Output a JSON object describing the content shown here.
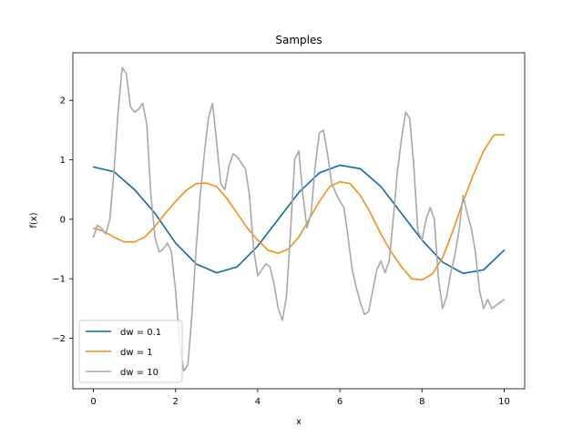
{
  "chart_data": {
    "type": "line",
    "title": "Samples",
    "xlabel": "x",
    "ylabel": "f(x)",
    "xlim": [
      -0.5,
      10.5
    ],
    "ylim": [
      -2.85,
      2.8
    ],
    "xticks": [
      0,
      2,
      4,
      6,
      8,
      10
    ],
    "yticks": [
      -2,
      -1,
      0,
      1,
      2
    ],
    "grid": false,
    "legend_position": "bottom-left",
    "series": [
      {
        "name": "dw = 0.1",
        "color": "#0f6aa3",
        "x": [
          0,
          0.5,
          1,
          1.5,
          2,
          2.5,
          3,
          3.5,
          4,
          4.5,
          5,
          5.5,
          6,
          6.5,
          7,
          7.5,
          8,
          8.5,
          9,
          9.5,
          10
        ],
        "y": [
          0.88,
          0.8,
          0.5,
          0.1,
          -0.4,
          -0.75,
          -0.9,
          -0.8,
          -0.45,
          0.0,
          0.45,
          0.78,
          0.91,
          0.85,
          0.55,
          0.1,
          -0.35,
          -0.72,
          -0.91,
          -0.85,
          -0.52
        ]
      },
      {
        "name": "dw = 1",
        "color": "#f28e1c",
        "x": [
          0,
          0.25,
          0.5,
          0.75,
          1,
          1.25,
          1.5,
          1.75,
          2,
          2.25,
          2.5,
          2.75,
          3,
          3.25,
          3.5,
          3.75,
          4,
          4.25,
          4.5,
          4.75,
          5,
          5.25,
          5.5,
          5.75,
          6,
          6.25,
          6.5,
          6.75,
          7,
          7.25,
          7.5,
          7.75,
          8,
          8.25,
          8.5,
          8.75,
          9,
          9.25,
          9.5,
          9.75,
          10
        ],
        "y": [
          -0.15,
          -0.2,
          -0.3,
          -0.38,
          -0.38,
          -0.3,
          -0.12,
          0.1,
          0.3,
          0.48,
          0.6,
          0.61,
          0.55,
          0.35,
          0.1,
          -0.15,
          -0.35,
          -0.52,
          -0.57,
          -0.5,
          -0.3,
          0.0,
          0.3,
          0.55,
          0.63,
          0.6,
          0.4,
          0.1,
          -0.25,
          -0.55,
          -0.8,
          -1.0,
          -1.02,
          -0.92,
          -0.65,
          -0.2,
          0.3,
          0.75,
          1.15,
          1.42,
          1.42
        ]
      },
      {
        "name": "dw = 10",
        "color": "#a8a8a8",
        "x": [
          0,
          0.1,
          0.2,
          0.3,
          0.4,
          0.5,
          0.6,
          0.7,
          0.8,
          0.9,
          1.0,
          1.1,
          1.2,
          1.3,
          1.4,
          1.5,
          1.6,
          1.7,
          1.8,
          1.9,
          2.0,
          2.1,
          2.2,
          2.3,
          2.4,
          2.5,
          2.6,
          2.7,
          2.8,
          2.9,
          3.0,
          3.1,
          3.2,
          3.3,
          3.4,
          3.5,
          3.6,
          3.7,
          3.8,
          3.9,
          4.0,
          4.1,
          4.2,
          4.3,
          4.4,
          4.5,
          4.6,
          4.7,
          4.8,
          4.9,
          5.0,
          5.1,
          5.2,
          5.3,
          5.4,
          5.5,
          5.6,
          5.7,
          5.8,
          5.9,
          6.0,
          6.1,
          6.2,
          6.3,
          6.4,
          6.5,
          6.6,
          6.7,
          6.8,
          6.9,
          7.0,
          7.1,
          7.2,
          7.3,
          7.4,
          7.5,
          7.6,
          7.7,
          7.8,
          7.9,
          8.0,
          8.1,
          8.2,
          8.3,
          8.4,
          8.5,
          8.6,
          8.7,
          8.8,
          8.9,
          9.0,
          9.1,
          9.2,
          9.3,
          9.4,
          9.5,
          9.6,
          9.7,
          9.8,
          9.9,
          10.0
        ],
        "y": [
          -0.3,
          -0.1,
          -0.15,
          -0.25,
          0.0,
          0.8,
          1.8,
          2.55,
          2.45,
          1.9,
          1.8,
          1.85,
          1.95,
          1.6,
          0.4,
          -0.3,
          -0.55,
          -0.5,
          -0.4,
          -0.55,
          -1.2,
          -2.1,
          -2.55,
          -2.45,
          -1.6,
          -0.5,
          0.4,
          1.1,
          1.7,
          1.95,
          1.3,
          0.6,
          0.5,
          0.9,
          1.1,
          1.05,
          0.95,
          0.85,
          0.4,
          -0.5,
          -0.95,
          -0.85,
          -0.75,
          -0.8,
          -1.1,
          -1.5,
          -1.7,
          -1.3,
          -0.2,
          1.0,
          1.15,
          0.4,
          -0.15,
          0.1,
          0.9,
          1.45,
          1.5,
          1.1,
          0.6,
          0.45,
          0.3,
          0.2,
          -0.3,
          -0.85,
          -1.15,
          -1.4,
          -1.6,
          -1.55,
          -1.2,
          -0.85,
          -0.7,
          -0.9,
          -0.7,
          0.0,
          0.8,
          1.35,
          1.8,
          1.7,
          0.9,
          -0.2,
          -0.35,
          0.0,
          0.2,
          0.0,
          -1.0,
          -1.5,
          -1.3,
          -0.9,
          -0.6,
          -0.2,
          0.4,
          0.1,
          -0.15,
          -0.55,
          -1.2,
          -1.5,
          -1.35,
          -1.5,
          -1.45,
          -1.4,
          -1.35
        ]
      }
    ]
  }
}
